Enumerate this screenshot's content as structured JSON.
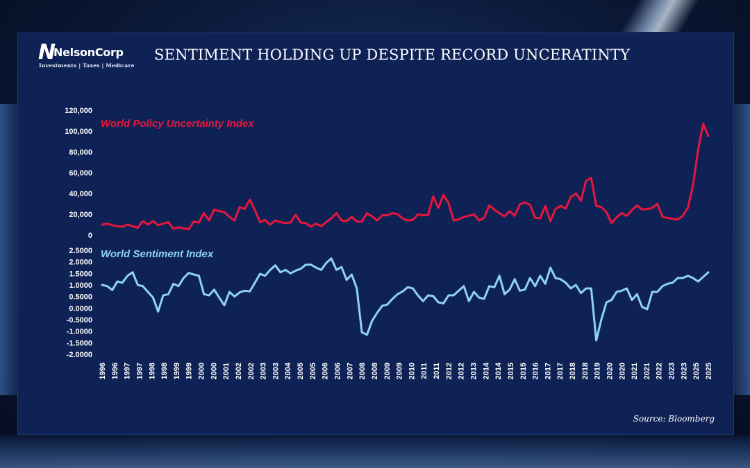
{
  "header": {
    "title": "SENTIMENT HOLDING UP DESPITE RECORD UNCERATINTY",
    "logo_mark": "N",
    "logo_name": "NelsonCorp",
    "logo_tagline": "Investments | Taxes | Medicare"
  },
  "footer": {
    "source": "Source: Bloomberg"
  },
  "colors": {
    "uncertainty": "#e8163c",
    "sentiment": "#8fd3f7",
    "panel": "#0f2256",
    "text": "#ffffff"
  },
  "chart_data": [
    {
      "type": "line",
      "title": "World Policy Uncertainty Index",
      "series_label": "World Policy Uncertainty Index",
      "color": "#e8163c",
      "ylim": [
        0,
        120000
      ],
      "ytick_labels": [
        "120,000",
        "100,000",
        "80,000",
        "60,000",
        "40,000",
        "20,000",
        "0"
      ],
      "ytick_values": [
        120000,
        100000,
        80000,
        60000,
        40000,
        20000,
        0
      ],
      "x_start": 1996.0,
      "x_step": 0.25,
      "values": [
        10000,
        11000,
        9500,
        8500,
        8000,
        10000,
        8500,
        7000,
        13500,
        10000,
        13500,
        9500,
        11000,
        12500,
        6000,
        7500,
        6500,
        5500,
        13000,
        12000,
        21000,
        14000,
        24500,
        23000,
        22000,
        17500,
        14000,
        27000,
        25000,
        34000,
        24000,
        12500,
        14500,
        10000,
        14000,
        12500,
        11500,
        12000,
        19500,
        12000,
        11500,
        8000,
        11000,
        8500,
        12500,
        16000,
        21000,
        14000,
        13500,
        17500,
        13000,
        13000,
        21000,
        18000,
        14000,
        19000,
        19000,
        21000,
        20000,
        16000,
        14000,
        14500,
        20000,
        19000,
        19500,
        37000,
        26000,
        38500,
        31000,
        14000,
        15000,
        17500,
        18500,
        20000,
        14000,
        16500,
        28500,
        24500,
        21000,
        18000,
        23000,
        18500,
        29500,
        31500,
        29000,
        16500,
        16000,
        28000,
        13500,
        25000,
        28000,
        25500,
        36500,
        40000,
        33000,
        52000,
        55000,
        28000,
        27000,
        22000,
        11500,
        17000,
        21000,
        18500,
        24000,
        28500,
        24500,
        25000,
        26000,
        30000,
        17500,
        16500,
        15500,
        15000,
        18500,
        26500,
        48000,
        82000,
        107000,
        95000
      ]
    },
    {
      "type": "line",
      "title": "World Sentiment Index",
      "series_label": "World Sentiment Index",
      "color": "#8fd3f7",
      "ylim": [
        -2.0,
        2.5
      ],
      "ytick_labels": [
        "2.5000",
        "2.0000",
        "1.5000",
        "1.0000",
        "0.5000",
        "0.0000",
        "-0.5000",
        "-1.0000",
        "-1.5000",
        "-2.0000"
      ],
      "ytick_values": [
        2.5,
        2.0,
        1.5,
        1.0,
        0.5,
        0.0,
        -0.5,
        -1.0,
        -1.5,
        -2.0
      ],
      "x_start": 1996.0,
      "x_step": 0.25,
      "values": [
        1.0,
        0.95,
        0.78,
        1.15,
        1.1,
        1.4,
        1.55,
        1.0,
        0.95,
        0.7,
        0.45,
        -0.15,
        0.55,
        0.6,
        1.05,
        0.95,
        1.3,
        1.52,
        1.45,
        1.4,
        0.6,
        0.55,
        0.8,
        0.45,
        0.12,
        0.7,
        0.5,
        0.68,
        0.75,
        0.72,
        1.1,
        1.48,
        1.4,
        1.65,
        1.85,
        1.55,
        1.65,
        1.5,
        1.62,
        1.7,
        1.88,
        1.88,
        1.75,
        1.65,
        1.95,
        2.15,
        1.65,
        1.78,
        1.22,
        1.45,
        0.85,
        -1.05,
        -1.15,
        -0.55,
        -0.2,
        0.1,
        0.15,
        0.4,
        0.6,
        0.72,
        0.9,
        0.85,
        0.55,
        0.3,
        0.55,
        0.52,
        0.25,
        0.2,
        0.55,
        0.55,
        0.75,
        0.95,
        0.3,
        0.7,
        0.45,
        0.4,
        0.95,
        0.9,
        1.4,
        0.6,
        0.8,
        1.25,
        0.75,
        0.8,
        1.3,
        0.95,
        1.4,
        1.05,
        1.75,
        1.3,
        1.25,
        1.1,
        0.85,
        1.0,
        0.65,
        0.85,
        0.85,
        -1.4,
        -0.5,
        0.25,
        0.35,
        0.7,
        0.75,
        0.85,
        0.35,
        0.6,
        0.05,
        -0.05,
        0.7,
        0.7,
        0.95,
        1.05,
        1.1,
        1.3,
        1.3,
        1.4,
        1.3,
        1.15,
        1.35,
        1.55
      ]
    }
  ],
  "x_axis": {
    "tick_labels": [
      "1996",
      "1996",
      "1997",
      "1997",
      "1998",
      "1998",
      "1999",
      "1999",
      "2000",
      "2000",
      "2001",
      "2002",
      "2002",
      "2003",
      "2003",
      "2004",
      "2005",
      "2005",
      "2006",
      "2006",
      "2007",
      "2008",
      "2008",
      "2009",
      "2009",
      "2010",
      "2011",
      "2011",
      "2012",
      "2012",
      "2013",
      "2014",
      "2014",
      "2015",
      "2015",
      "2016",
      "2017",
      "2017",
      "2018",
      "2018",
      "2019",
      "2020",
      "2020",
      "2021",
      "2021",
      "2022",
      "2023",
      "2023",
      "2025",
      "2025"
    ]
  }
}
